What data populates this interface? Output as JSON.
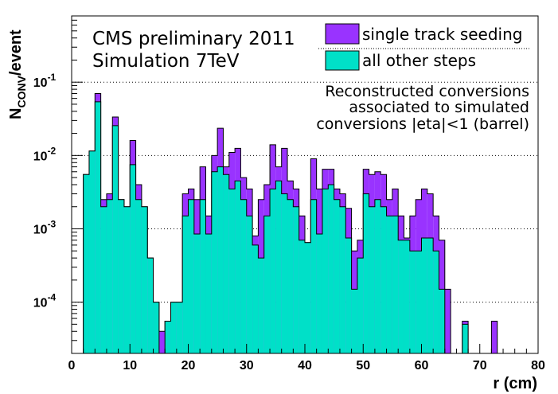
{
  "chart_data": {
    "type": "histogram",
    "stacked": true,
    "xlabel": "r (cm)",
    "ylabel_main": "N",
    "ylabel_sub": "CONV",
    "ylabel_rest": "/event",
    "xlim": [
      0,
      80
    ],
    "ylim": [
      2e-05,
      0.8
    ],
    "log_y": true,
    "bin_width": 1,
    "grid": "horizontal dotted at decades",
    "x_ticks": [
      0,
      10,
      20,
      30,
      40,
      50,
      60,
      70,
      80
    ],
    "x_tick_labels": [
      "0",
      "10",
      "20",
      "30",
      "40",
      "50",
      "60",
      "70",
      "80"
    ],
    "y_ticks": [
      0.0001,
      0.001,
      0.01,
      0.1
    ],
    "y_tick_labels": [
      {
        "base": "10",
        "exp": "-4"
      },
      {
        "base": "10",
        "exp": "-3"
      },
      {
        "base": "10",
        "exp": "-2"
      },
      {
        "base": "10",
        "exp": "-1"
      }
    ],
    "annotations": {
      "header_line1": "CMS preliminary 2011",
      "header_line2": "Simulation 7TeV",
      "note_lines": [
        "Reconstructed conversions",
        "associated to simulated",
        "conversions |eta|<1 (barrel)"
      ]
    },
    "legend_position": "top-right",
    "series": [
      {
        "name": "all other steps",
        "color": "#00e0c8",
        "values": [
          0,
          0,
          0.0055,
          0.0115,
          0.054,
          0.002,
          0.0025,
          0.0255,
          0.0025,
          0.002,
          0.0075,
          0.0025,
          0.002,
          0.0004,
          0.0001,
          2e-05,
          5.5e-05,
          0.0001,
          0.0001,
          0.0015,
          0.0025,
          0.00085,
          0.0025,
          0.00085,
          0.006,
          0.007,
          0.0055,
          0.0035,
          0.0045,
          0.0025,
          0.0015,
          0.0006,
          0.0004,
          0.0015,
          0.0035,
          0.0045,
          0.003,
          0.0025,
          0.002,
          0.0007,
          0.00065,
          0.0025,
          0.00085,
          0.0035,
          0.004,
          0.0025,
          0.002,
          0.00075,
          0.00015,
          0.0004,
          0.003,
          0.002,
          0.0025,
          0.002,
          0.0015,
          0.0015,
          0.0007,
          0.0007,
          0.0005,
          0.0005,
          0.00075,
          0.00075,
          0.0005,
          0.00015,
          2e-05,
          2e-05,
          2e-05,
          5e-05,
          2e-05,
          2e-05,
          2e-05,
          2e-05,
          2e-05,
          2e-05,
          2e-05,
          2e-05,
          2e-05,
          2e-05,
          2e-05,
          2e-05
        ]
      },
      {
        "name": "single track seeding",
        "color": "#9933ff",
        "total_values": [
          0,
          0,
          0.0055,
          0.0115,
          0.07,
          0.0025,
          0.003,
          0.0335,
          0.0025,
          0.002,
          0.016,
          0.004,
          0.002,
          0.0004,
          0.0001,
          4e-05,
          5.5e-05,
          0.0001,
          0.0001,
          0.003,
          0.0035,
          0.0025,
          0.007,
          0.0015,
          0.01,
          0.0235,
          0.007,
          0.011,
          0.0125,
          0.005,
          0.0035,
          0.0008,
          0.0025,
          0.004,
          0.014,
          0.007,
          0.0125,
          0.0045,
          0.0035,
          0.0015,
          0.00065,
          0.009,
          0.0035,
          0.0065,
          0.0065,
          0.0035,
          0.003,
          0.0019,
          0.0005,
          0.0007,
          0.0065,
          0.0055,
          0.006,
          0.0055,
          0.0025,
          0.0035,
          0.0015,
          0.00075,
          0.0015,
          0.0025,
          0.0035,
          0.003,
          0.0015,
          0.0007,
          0.00015,
          2e-05,
          2e-05,
          5.5e-05,
          2e-05,
          2e-05,
          2e-05,
          2e-05,
          5.5e-05,
          2e-05,
          2e-05,
          2e-05,
          2e-05,
          2e-05,
          2e-05,
          2e-05
        ]
      }
    ]
  }
}
